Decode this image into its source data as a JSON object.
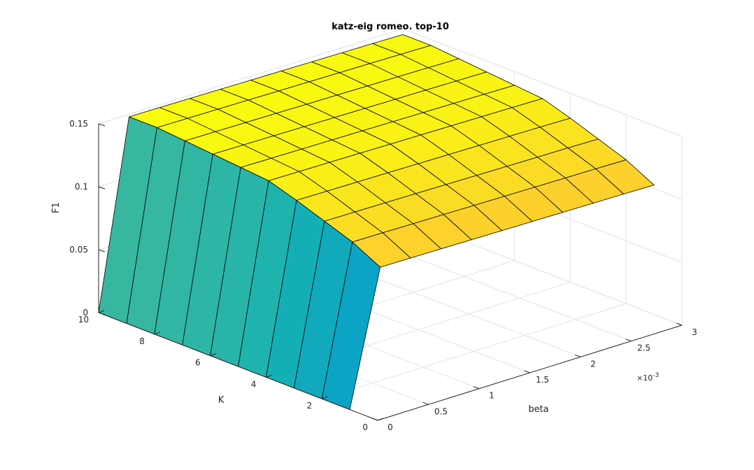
{
  "chart_data": {
    "type": "surface",
    "title": "katz-eig romeo. top-10",
    "xlabel": "beta",
    "ylabel": "K",
    "zlabel": "F1",
    "x_exponent_label": "×10",
    "x_exponent_power": "-3",
    "x_ticks": [
      "0",
      "0.5",
      "1",
      "1.5",
      "2",
      "2.5",
      "3"
    ],
    "y_ticks": [
      "0",
      "2",
      "4",
      "6",
      "8",
      "10"
    ],
    "z_ticks": [
      "0",
      "0.05",
      "0.1",
      "0.15"
    ],
    "xlim": [
      0,
      0.003
    ],
    "ylim": [
      0,
      10
    ],
    "zlim": [
      0,
      0.15
    ],
    "beta": [
      0,
      0.0003,
      0.0006,
      0.0009,
      0.0012,
      0.0015,
      0.0018,
      0.0021,
      0.0024,
      0.0027,
      0.003
    ],
    "K": [
      1,
      2,
      3,
      4,
      5,
      6,
      7,
      8,
      9,
      10
    ],
    "F1": [
      [
        0,
        0.1055,
        0.1053,
        0.105,
        0.1047,
        0.1044,
        0.1041,
        0.1038,
        0.1035,
        0.1032,
        0.1028
      ],
      [
        0,
        0.117,
        0.1168,
        0.1165,
        0.1162,
        0.1159,
        0.1156,
        0.1153,
        0.115,
        0.1147,
        0.1143
      ],
      [
        0,
        0.125,
        0.1248,
        0.1245,
        0.1242,
        0.1239,
        0.1236,
        0.1233,
        0.123,
        0.1227,
        0.1223
      ],
      [
        0,
        0.133,
        0.1328,
        0.1325,
        0.1322,
        0.1319,
        0.1316,
        0.1313,
        0.131,
        0.1307,
        0.1303
      ],
      [
        0,
        0.14,
        0.1398,
        0.1395,
        0.1392,
        0.1389,
        0.1386,
        0.1383,
        0.138,
        0.1377,
        0.1373
      ],
      [
        0,
        0.142,
        0.1418,
        0.1415,
        0.1412,
        0.1409,
        0.1406,
        0.1403,
        0.14,
        0.1397,
        0.1393
      ],
      [
        0,
        0.144,
        0.1438,
        0.1435,
        0.1432,
        0.1429,
        0.1426,
        0.1423,
        0.142,
        0.1417,
        0.1413
      ],
      [
        0,
        0.146,
        0.1458,
        0.1455,
        0.1452,
        0.1449,
        0.1446,
        0.1443,
        0.144,
        0.1437,
        0.1433
      ],
      [
        0,
        0.148,
        0.1478,
        0.1475,
        0.1472,
        0.1469,
        0.1466,
        0.1463,
        0.146,
        0.1457,
        0.1453
      ],
      [
        0,
        0.148,
        0.1478,
        0.1475,
        0.1472,
        0.1469,
        0.1466,
        0.1463,
        0.146,
        0.1457,
        0.1453
      ]
    ],
    "colormap": "parula",
    "grid": true
  }
}
